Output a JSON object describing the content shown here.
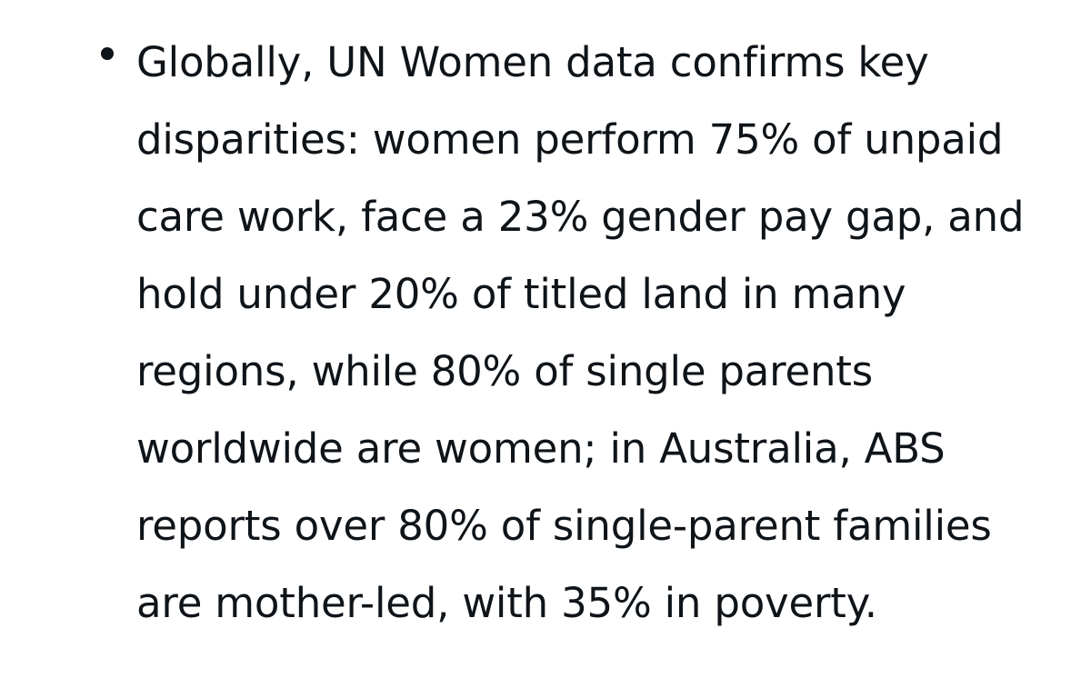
{
  "post": {
    "bullet": {
      "lines": [
        "Globally, UN Women data confirms key",
        "disparities: women perform 75% of unpaid",
        "care work, face a 23% gender pay gap, and",
        "hold under 20% of titled land in many",
        "regions, while 80% of single parents",
        "worldwide are women; in Australia, ABS",
        "reports over 80% of single-parent families",
        "are mother-led, with 35% in poverty."
      ]
    }
  }
}
